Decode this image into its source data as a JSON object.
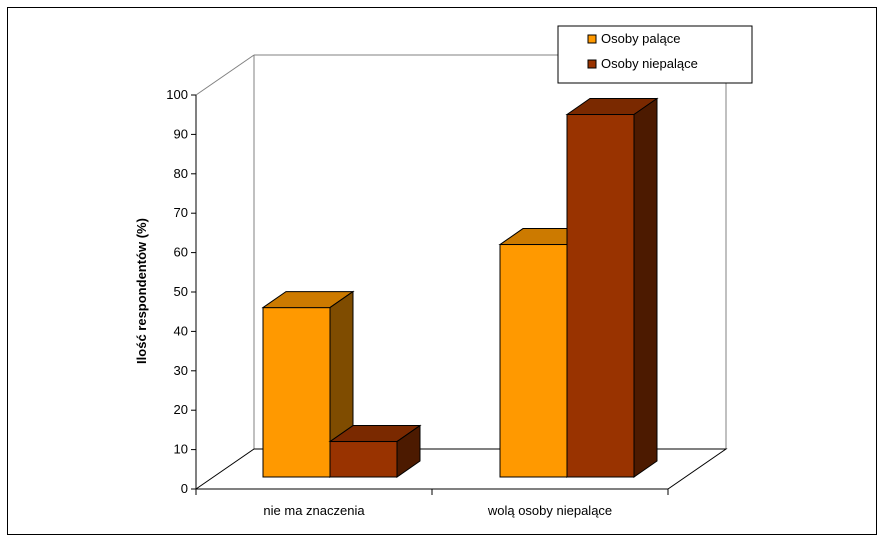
{
  "chart_data": {
    "type": "bar",
    "title": "",
    "xlabel": "",
    "ylabel": "Ilość respondentów (%)",
    "ylim": [
      0,
      100
    ],
    "yticks": [
      0,
      10,
      20,
      30,
      40,
      50,
      60,
      70,
      80,
      90,
      100
    ],
    "categories": [
      "nie ma znaczenia",
      "wolą osoby niepalące"
    ],
    "series": [
      {
        "name": "Osoby palące",
        "values": [
          43,
          59
        ],
        "color": "#FF9900",
        "top_color": "#CC7A00",
        "side_color": "#7F4C00"
      },
      {
        "name": "Osoby niepalące",
        "values": [
          9,
          92
        ],
        "color": "#993300",
        "top_color": "#7A2900",
        "side_color": "#4C1A00"
      }
    ],
    "grid": false,
    "legend_position": "top-right",
    "three_d": true
  }
}
